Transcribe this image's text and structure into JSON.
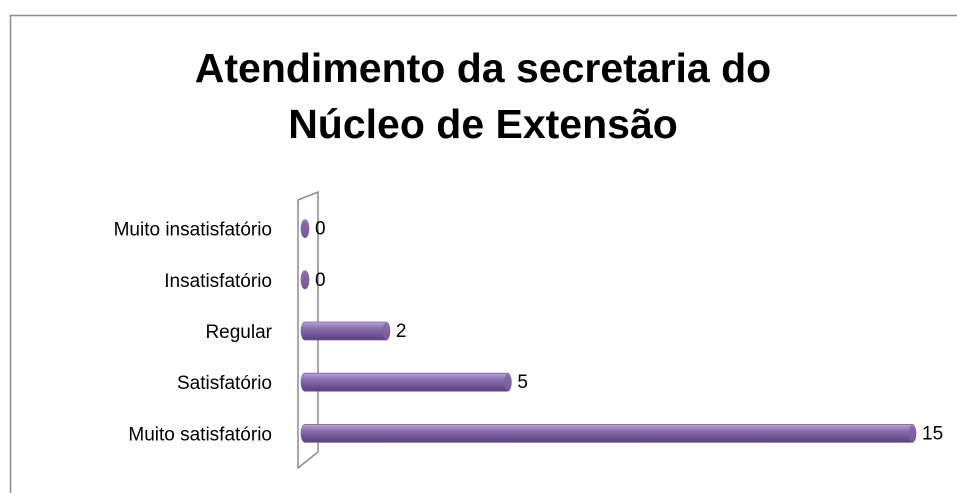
{
  "chart_data": {
    "type": "bar",
    "orientation": "horizontal",
    "title": "Atendimento da secretaria do Núcleo de Extensão",
    "categories": [
      "Muito insatisfatório",
      "Insatisfatório",
      "Regular",
      "Satisfatório",
      "Muito satisfatório"
    ],
    "values": [
      0,
      0,
      2,
      5,
      15
    ],
    "color": "#7f63a1"
  }
}
